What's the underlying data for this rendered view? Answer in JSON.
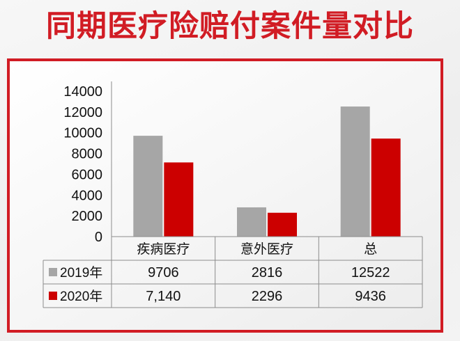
{
  "title": "同期医疗险赔付案件量对比",
  "chart_data": {
    "type": "bar",
    "categories": [
      "疾病医疗",
      "意外医疗",
      "总"
    ],
    "series": [
      {
        "name": "2019年",
        "color": "#a6a6a6",
        "values": [
          9706,
          2816,
          12522
        ],
        "labels": [
          "9706",
          "2816",
          "12522"
        ]
      },
      {
        "name": "2020年",
        "color": "#cc0000",
        "values": [
          7140,
          2296,
          9436
        ],
        "labels": [
          "7,140",
          "2296",
          "9436"
        ]
      }
    ],
    "ylim": [
      0,
      14000
    ],
    "yticks": [
      0,
      2000,
      4000,
      6000,
      8000,
      10000,
      12000,
      14000
    ],
    "grid": false,
    "legend": "data-table"
  }
}
